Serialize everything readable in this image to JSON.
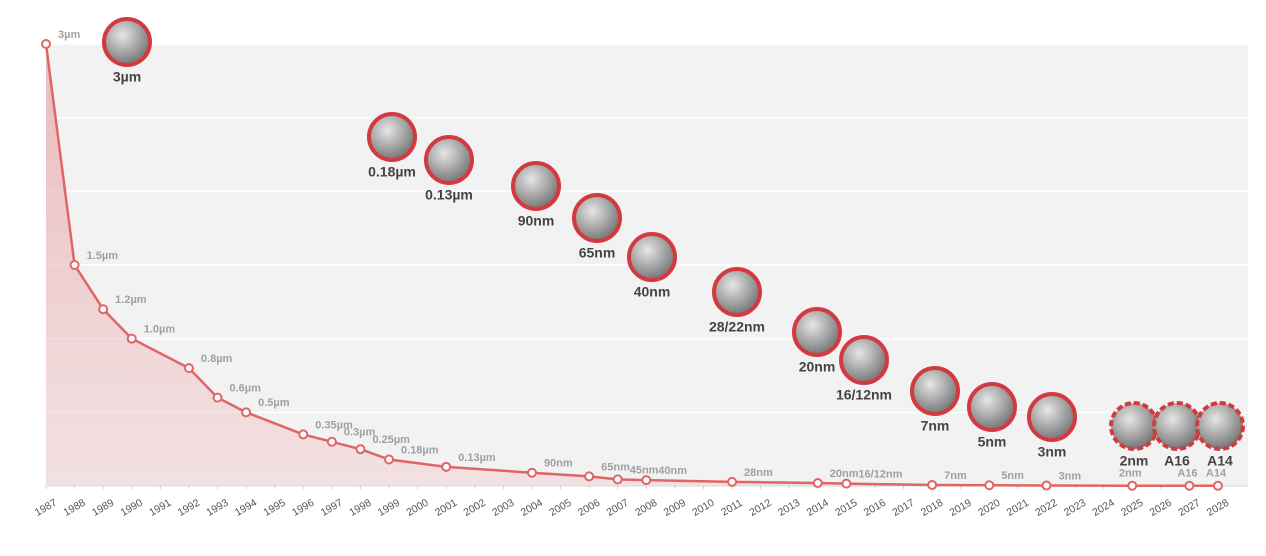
{
  "chart_data": {
    "type": "line",
    "x": [
      1987,
      1988,
      1989,
      1990,
      1992,
      1993,
      1994,
      1996,
      1997,
      1998,
      1999,
      2001,
      2004,
      2006,
      2007,
      2008,
      2011,
      2014,
      2015,
      2018,
      2020,
      2022,
      2025,
      2027,
      2028
    ],
    "series": [
      {
        "color": "#e06565",
        "values": [
          3,
          1.5,
          1.2,
          1.0,
          0.8,
          0.6,
          0.5,
          0.35,
          0.3,
          0.25,
          0.18,
          0.13,
          0.09,
          0.065,
          0.045,
          0.04,
          0.028,
          0.02,
          0.016,
          0.007,
          0.005,
          0.003,
          0.002,
          0.0016,
          0.0014
        ],
        "value_labels": [
          "3µm",
          "1.5µm",
          "1.2µm",
          "1.0µm",
          "0.8µm",
          "0.6µm",
          "0.5µm",
          "0.35µm",
          "0.3µm",
          "0.25µm",
          "0.18µm",
          "0.13µm",
          "90nm",
          "65nm",
          "45nm",
          "40nm",
          "28nm",
          "20nm",
          "16/12nm",
          "7nm",
          "5nm",
          "3nm",
          "2nm",
          "A16",
          "A14"
        ]
      }
    ],
    "xlim": [
      1987,
      2028
    ],
    "xticks": [
      1987,
      1988,
      1989,
      1990,
      1991,
      1992,
      1993,
      1994,
      1995,
      1996,
      1997,
      1998,
      1999,
      2000,
      2001,
      2002,
      2003,
      2004,
      2005,
      2006,
      2007,
      2008,
      2009,
      2010,
      2011,
      2012,
      2013,
      2014,
      2015,
      2016,
      2017,
      2018,
      2019,
      2020,
      2021,
      2022,
      2023,
      2024,
      2025,
      2026,
      2027,
      2028
    ],
    "ylim": [
      0,
      3
    ],
    "yticks": [
      0,
      0.5,
      1,
      1.5,
      2,
      2.5,
      3
    ],
    "grid": true,
    "annotations": [
      "3µm",
      "0.18µm",
      "0.13µm",
      "90nm",
      "65nm",
      "40nm",
      "28/22nm",
      "20nm",
      "16/12nm",
      "7nm",
      "5nm",
      "3nm",
      "2nm",
      "A16",
      "A14"
    ]
  }
}
